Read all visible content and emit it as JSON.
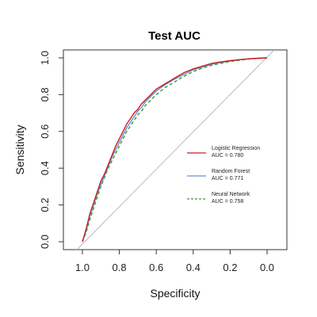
{
  "chart_data": {
    "type": "line",
    "title": "Test AUC",
    "xlabel": "Specificity",
    "ylabel": "Sensitivity",
    "x_reversed": true,
    "xlim": [
      1.0,
      0.0
    ],
    "ylim": [
      0.0,
      1.0
    ],
    "x_ticks": [
      "1.0",
      "0.8",
      "0.6",
      "0.4",
      "0.2",
      "0.0"
    ],
    "y_ticks": [
      "0.0",
      "0.2",
      "0.4",
      "0.6",
      "0.8",
      "1.0"
    ],
    "grid": false,
    "legend_position": "center-right",
    "reference_line": {
      "from": [
        1.0,
        0.0
      ],
      "to": [
        0.0,
        1.0
      ],
      "color": "#bbbbbb"
    },
    "series": [
      {
        "name": "Logistic Regression",
        "auc_label": "AUC = 0.780",
        "color": "#cc1f1f",
        "dash": "solid",
        "x": [
          1.0,
          0.98,
          0.96,
          0.94,
          0.92,
          0.9,
          0.88,
          0.86,
          0.84,
          0.82,
          0.8,
          0.78,
          0.76,
          0.74,
          0.72,
          0.7,
          0.68,
          0.66,
          0.64,
          0.62,
          0.6,
          0.55,
          0.5,
          0.45,
          0.4,
          0.35,
          0.3,
          0.25,
          0.2,
          0.15,
          0.1,
          0.05,
          0.0
        ],
        "y": [
          0.0,
          0.07,
          0.15,
          0.21,
          0.27,
          0.33,
          0.37,
          0.42,
          0.47,
          0.52,
          0.56,
          0.6,
          0.64,
          0.67,
          0.7,
          0.72,
          0.75,
          0.77,
          0.79,
          0.81,
          0.83,
          0.86,
          0.89,
          0.92,
          0.94,
          0.955,
          0.97,
          0.978,
          0.985,
          0.99,
          0.995,
          0.998,
          1.0
        ]
      },
      {
        "name": "Random Forest",
        "auc_label": "AUC = 0.771",
        "color": "#6b8fd6",
        "dash": "solid",
        "x": [
          1.0,
          0.98,
          0.96,
          0.94,
          0.92,
          0.9,
          0.88,
          0.86,
          0.84,
          0.82,
          0.8,
          0.78,
          0.76,
          0.74,
          0.72,
          0.7,
          0.68,
          0.66,
          0.64,
          0.62,
          0.6,
          0.55,
          0.5,
          0.45,
          0.4,
          0.35,
          0.3,
          0.25,
          0.2,
          0.15,
          0.1,
          0.05,
          0.0
        ],
        "y": [
          0.0,
          0.06,
          0.14,
          0.2,
          0.26,
          0.31,
          0.36,
          0.41,
          0.46,
          0.5,
          0.54,
          0.58,
          0.62,
          0.65,
          0.68,
          0.71,
          0.73,
          0.76,
          0.78,
          0.8,
          0.82,
          0.855,
          0.885,
          0.91,
          0.935,
          0.95,
          0.965,
          0.975,
          0.983,
          0.99,
          0.995,
          0.998,
          1.0
        ]
      },
      {
        "name": "Neural Network",
        "auc_label": "AUC = 0.758",
        "color": "#2e9e2e",
        "dash": "dashed",
        "x": [
          1.0,
          0.98,
          0.96,
          0.94,
          0.92,
          0.9,
          0.88,
          0.86,
          0.84,
          0.82,
          0.8,
          0.78,
          0.76,
          0.74,
          0.72,
          0.7,
          0.68,
          0.66,
          0.64,
          0.62,
          0.6,
          0.55,
          0.5,
          0.45,
          0.4,
          0.35,
          0.3,
          0.25,
          0.2,
          0.15,
          0.1,
          0.05,
          0.0
        ],
        "y": [
          0.0,
          0.05,
          0.12,
          0.18,
          0.24,
          0.3,
          0.35,
          0.4,
          0.44,
          0.48,
          0.52,
          0.56,
          0.6,
          0.63,
          0.66,
          0.69,
          0.71,
          0.74,
          0.76,
          0.78,
          0.8,
          0.84,
          0.87,
          0.9,
          0.925,
          0.945,
          0.96,
          0.97,
          0.98,
          0.987,
          0.993,
          0.997,
          1.0
        ]
      }
    ]
  }
}
